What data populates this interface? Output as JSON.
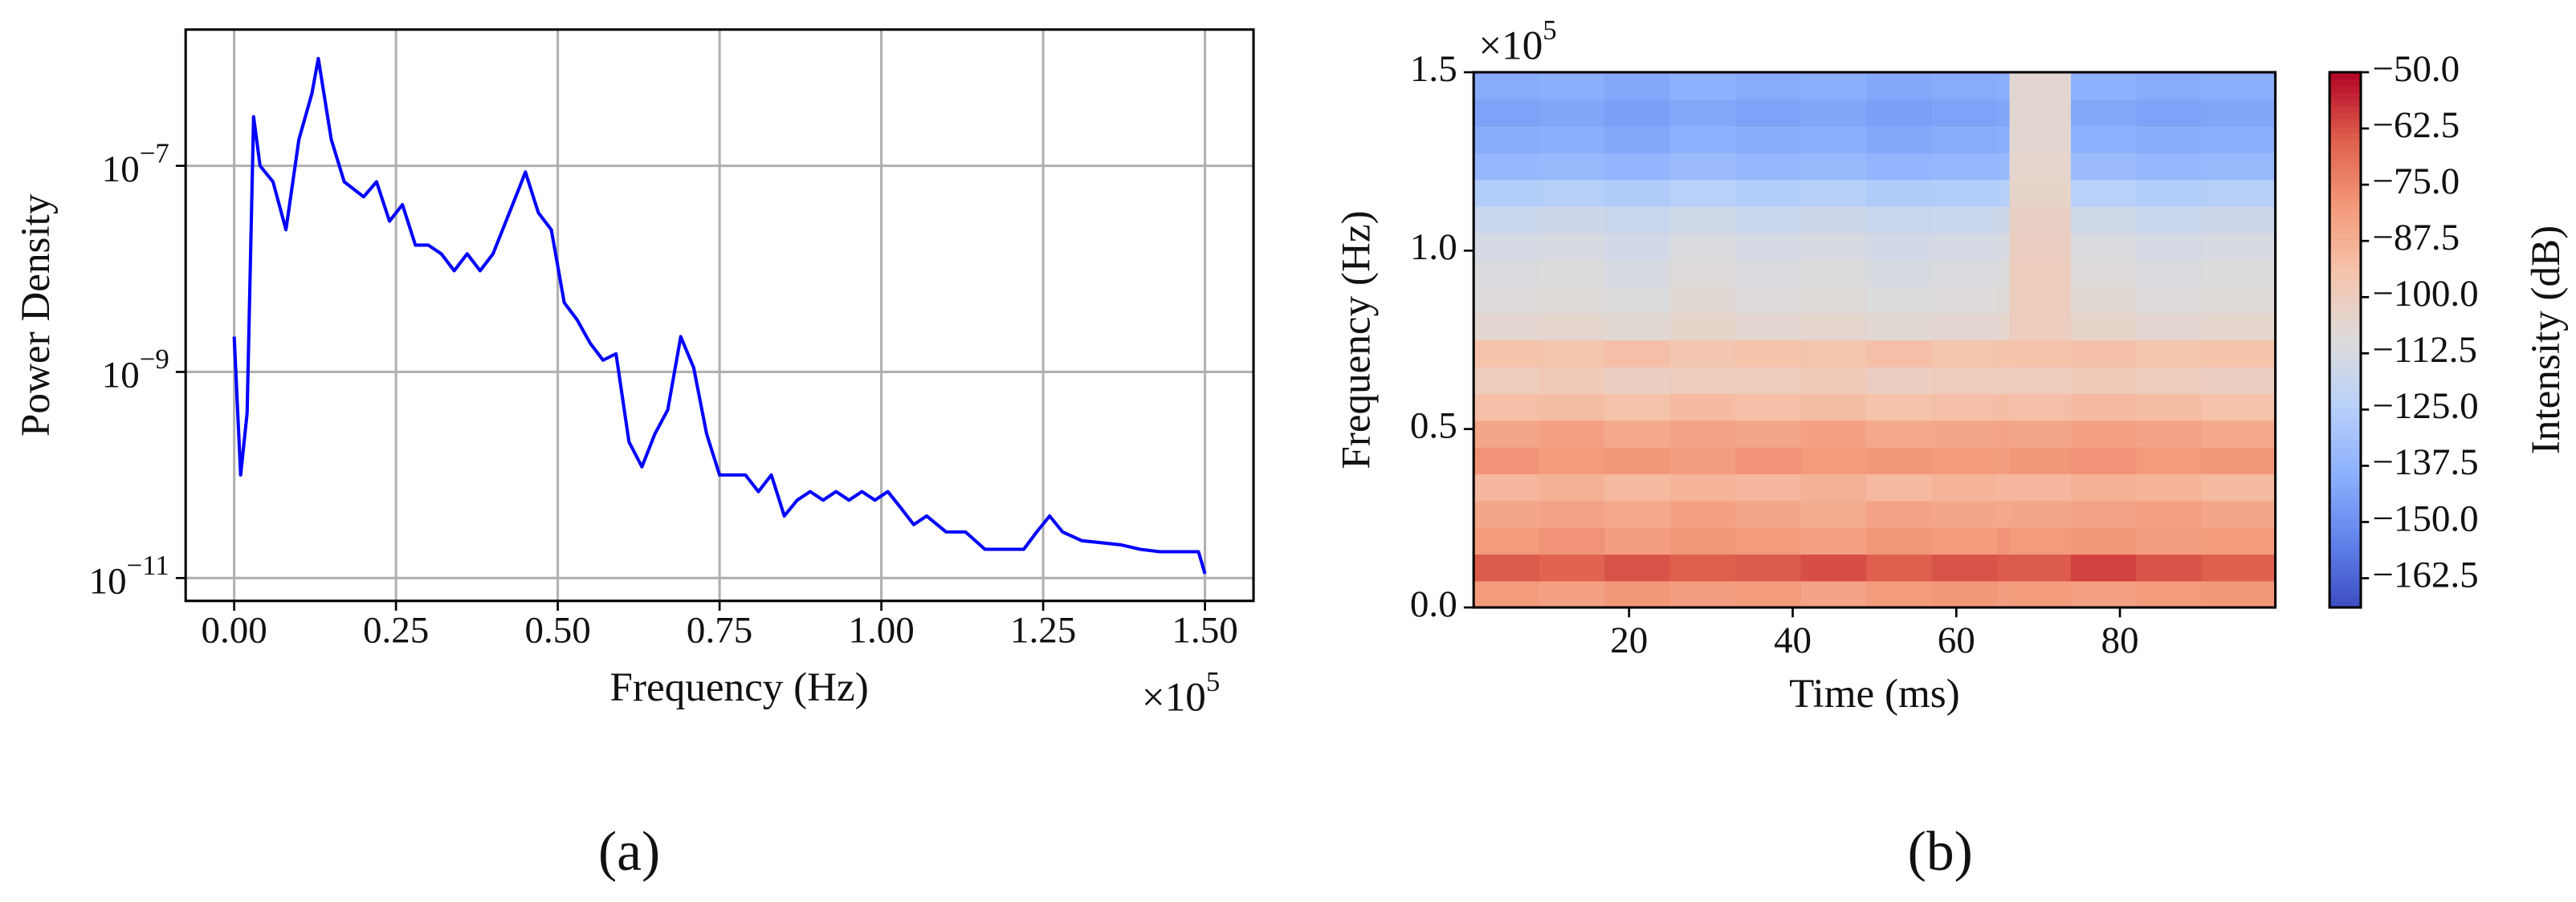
{
  "chart_data": [
    {
      "type": "line",
      "panel_label": "(a)",
      "x_label": "Frequency (Hz)",
      "y_label": "Power Density",
      "x_offset": {
        "base": "×10",
        "exponent": "5"
      },
      "log_y": true,
      "grid": true,
      "color": "#0000ff",
      "xlim": [
        -7500,
        157500
      ],
      "ylim": [
        6e-12,
        2.1e-06
      ],
      "xticks": [
        {
          "value": 0,
          "label": "0.00"
        },
        {
          "value": 25000,
          "label": "0.25"
        },
        {
          "value": 50000,
          "label": "0.50"
        },
        {
          "value": 75000,
          "label": "0.75"
        },
        {
          "value": 100000,
          "label": "1.00"
        },
        {
          "value": 125000,
          "label": "1.25"
        },
        {
          "value": 150000,
          "label": "1.50"
        }
      ],
      "yticks": [
        {
          "value": 1e-11,
          "label": "10",
          "exponent": "−11"
        },
        {
          "value": 1e-09,
          "label": "10",
          "exponent": "−9"
        },
        {
          "value": 1e-07,
          "label": "10",
          "exponent": "−7"
        }
      ],
      "x": [
        0,
        1000,
        2000,
        3000,
        4000,
        6000,
        8000,
        10000,
        12000,
        13000,
        15000,
        17000,
        20000,
        22000,
        24000,
        26000,
        28000,
        30000,
        32000,
        34000,
        36000,
        38000,
        40000,
        42000,
        44000,
        45000,
        47000,
        49000,
        51000,
        53000,
        55000,
        57000,
        59000,
        61000,
        63000,
        65000,
        67000,
        69000,
        71000,
        73000,
        75000,
        77000,
        79000,
        81000,
        83000,
        85000,
        87000,
        89000,
        91000,
        93000,
        95000,
        97000,
        99000,
        101000,
        103000,
        105000,
        107000,
        110000,
        113000,
        116000,
        119000,
        122000,
        124000,
        126000,
        128000,
        131000,
        134000,
        137000,
        140000,
        143000,
        146000,
        149000,
        150000
      ],
      "values": [
        2.2e-09,
        1e-10,
        4e-10,
        3e-07,
        1e-07,
        7e-08,
        2.4e-08,
        1.8e-07,
        5e-07,
        1.1e-06,
        1.8e-07,
        7e-08,
        5e-08,
        7e-08,
        2.9e-08,
        4.2e-08,
        1.7e-08,
        1.7e-08,
        1.4e-08,
        9.6e-09,
        1.4e-08,
        9.6e-09,
        1.4e-08,
        2.9e-08,
        6e-08,
        8.7e-08,
        3.5e-08,
        2.4e-08,
        4.7e-09,
        3.2e-09,
        1.9e-09,
        1.3e-09,
        1.5e-09,
        2.1e-10,
        1.2e-10,
        2.5e-10,
        4.3e-10,
        2.2e-09,
        1.1e-09,
        2.5e-10,
        1e-10,
        1e-10,
        1e-10,
        6.9e-11,
        1e-10,
        4e-11,
        5.7e-11,
        6.9e-11,
        5.7e-11,
        6.9e-11,
        5.7e-11,
        6.9e-11,
        5.7e-11,
        6.9e-11,
        4.8e-11,
        3.3e-11,
        4e-11,
        2.8e-11,
        2.8e-11,
        1.9e-11,
        1.9e-11,
        1.9e-11,
        2.8e-11,
        4e-11,
        2.8e-11,
        2.3e-11,
        2.2e-11,
        2.1e-11,
        1.9e-11,
        1.8e-11,
        1.8e-11,
        1.8e-11,
        1.1e-11
      ]
    },
    {
      "type": "heatmap",
      "panel_label": "(b)",
      "x_label": "Time (ms)",
      "y_label": "Frequency (Hz)",
      "colorbar_label": "Intensity (dB)",
      "y_offset": {
        "base": "×10",
        "exponent": "5"
      },
      "xlim": [
        1,
        99
      ],
      "ylim": [
        0,
        150000
      ],
      "clim": [
        -169,
        -50
      ],
      "xticks": [
        20,
        40,
        60,
        80
      ],
      "yticks": [
        {
          "value": 0,
          "label": "0.0"
        },
        {
          "value": 50000,
          "label": "0.5"
        },
        {
          "value": 100000,
          "label": "1.0"
        },
        {
          "value": 150000,
          "label": "1.5"
        }
      ],
      "cticks": [
        {
          "value": -50,
          "label": "−50.0"
        },
        {
          "value": -62.5,
          "label": "−62.5"
        },
        {
          "value": -75,
          "label": "−75.0"
        },
        {
          "value": -87.5,
          "label": "−87.5"
        },
        {
          "value": -100,
          "label": "−100.0"
        },
        {
          "value": -112.5,
          "label": "−112.5"
        },
        {
          "value": -125,
          "label": "−125.0"
        },
        {
          "value": -137.5,
          "label": "−137.5"
        },
        {
          "value": -150,
          "label": "−150.0"
        },
        {
          "value": -162.5,
          "label": "−162.5"
        }
      ],
      "colorscale": [
        "#3b4cc0",
        "#6282ea",
        "#8db0fe",
        "#b8d0f9",
        "#dddcdc",
        "#f5c4ac",
        "#f49a7b",
        "#de604d",
        "#b40426"
      ],
      "x_edges": [
        1,
        9,
        17,
        25,
        33,
        41,
        49,
        57,
        65,
        66.5,
        74,
        82,
        90,
        99
      ],
      "y_edges": [
        0,
        7500,
        15000,
        22500,
        30000,
        37500,
        45000,
        52500,
        60000,
        67500,
        75000,
        82500,
        90000,
        97500,
        105000,
        112500,
        120000,
        127500,
        135000,
        142500,
        150000
      ],
      "z": [
        [
          -80,
          -82,
          -79,
          -81,
          -80,
          -83,
          -80,
          -79,
          -81,
          -80,
          -82,
          -80,
          -79
        ],
        [
          -64,
          -66,
          -63,
          -65,
          -64,
          -62,
          -65,
          -63,
          -64,
          -64,
          -60,
          -63,
          -65
        ],
        [
          -80,
          -78,
          -81,
          -79,
          -80,
          -82,
          -79,
          -80,
          -78,
          -80,
          -79,
          -81,
          -80
        ],
        [
          -84,
          -83,
          -85,
          -82,
          -84,
          -86,
          -83,
          -84,
          -85,
          -84,
          -83,
          -82,
          -84
        ],
        [
          -90,
          -88,
          -91,
          -89,
          -90,
          -88,
          -91,
          -89,
          -90,
          -90,
          -88,
          -89,
          -91
        ],
        [
          -78,
          -80,
          -79,
          -81,
          -78,
          -80,
          -79,
          -80,
          -81,
          -79,
          -78,
          -80,
          -79
        ],
        [
          -84,
          -82,
          -85,
          -83,
          -84,
          -82,
          -85,
          -84,
          -83,
          -84,
          -82,
          -83,
          -85
        ],
        [
          -93,
          -92,
          -94,
          -91,
          -93,
          -92,
          -94,
          -93,
          -92,
          -93,
          -91,
          -92,
          -94
        ],
        [
          -100,
          -98,
          -101,
          -99,
          -100,
          -98,
          -101,
          -99,
          -100,
          -99,
          -98,
          -100,
          -101
        ],
        [
          -94,
          -95,
          -93,
          -96,
          -94,
          -95,
          -93,
          -95,
          -94,
          -94,
          -93,
          -95,
          -94
        ],
        [
          -106,
          -105,
          -107,
          -104,
          -106,
          -105,
          -107,
          -106,
          -105,
          -100,
          -104,
          -106,
          -105
        ],
        [
          -109,
          -108,
          -110,
          -107,
          -109,
          -108,
          -110,
          -109,
          -108,
          -100,
          -107,
          -109,
          -108
        ],
        [
          -111,
          -110,
          -112,
          -109,
          -111,
          -110,
          -112,
          -111,
          -110,
          -100,
          -109,
          -111,
          -110
        ],
        [
          -113,
          -112,
          -114,
          -111,
          -113,
          -112,
          -114,
          -113,
          -112,
          -101,
          -111,
          -113,
          -112
        ],
        [
          -117,
          -116,
          -118,
          -115,
          -117,
          -116,
          -118,
          -117,
          -116,
          -102,
          -115,
          -117,
          -116
        ],
        [
          -126,
          -125,
          -127,
          -124,
          -126,
          -125,
          -127,
          -126,
          -125,
          -104,
          -124,
          -126,
          -125
        ],
        [
          -136,
          -135,
          -137,
          -134,
          -136,
          -135,
          -137,
          -136,
          -135,
          -105,
          -134,
          -136,
          -135
        ],
        [
          -141,
          -140,
          -142,
          -139,
          -141,
          -140,
          -142,
          -141,
          -140,
          -106,
          -139,
          -141,
          -140
        ],
        [
          -144,
          -143,
          -145,
          -142,
          -144,
          -143,
          -145,
          -144,
          -143,
          -106,
          -142,
          -144,
          -143
        ],
        [
          -141,
          -140,
          -142,
          -139,
          -141,
          -140,
          -142,
          -141,
          -140,
          -106,
          -139,
          -141,
          -140
        ]
      ]
    }
  ]
}
